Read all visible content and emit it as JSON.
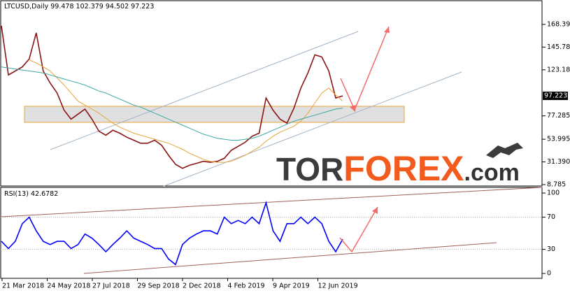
{
  "chart_data": [
    {
      "type": "line",
      "title": "LTCUSD,Daily",
      "ohlc": [
        99.478,
        102.379,
        94.502,
        97.223
      ],
      "ylim": [
        7.4,
        192.0
      ],
      "yticks": [
        {
          "value": 168.39,
          "label": "168.390"
        },
        145.785,
        {
          "value": 123.18,
          "label": "123.180"
        },
        77.285,
        53.995,
        {
          "value": 31.39,
          "label": "31.390"
        },
        8.785
      ],
      "series": [
        {
          "color": "#8a1414",
          "values": [
            167,
            118,
            122,
            126,
            134,
            160,
            122,
            110,
            100,
            83,
            74,
            79,
            84,
            74,
            62,
            58,
            63,
            60,
            56,
            53,
            50,
            50,
            53,
            48,
            38,
            29,
            25,
            28,
            30,
            32,
            31,
            32,
            35,
            43,
            47,
            51,
            57,
            60,
            95,
            83,
            74,
            70,
            85,
            105,
            120,
            138,
            136,
            122,
            95,
            97.223
          ]
        },
        {
          "color": "#e8a43a",
          "values": [
            null,
            null,
            null,
            null,
            133,
            130,
            126,
            122,
            115,
            108,
            100,
            92,
            88,
            84,
            80,
            75,
            70,
            66,
            63,
            60,
            58,
            56,
            54,
            52,
            50,
            47,
            44,
            40,
            37,
            34,
            32,
            31,
            31,
            32,
            35,
            38,
            42,
            46,
            52,
            57,
            61,
            64,
            67,
            72,
            80,
            90,
            100,
            105,
            98,
            92
          ]
        },
        {
          "color": "#3aa7a3",
          "values": [
            126,
            125,
            124,
            123,
            122,
            121,
            120,
            118,
            116,
            114,
            112,
            110,
            108,
            105,
            102,
            100,
            97,
            94,
            91,
            88,
            86,
            83,
            80,
            77,
            74,
            71,
            68,
            65,
            62,
            59,
            57,
            55,
            54,
            53,
            53,
            54,
            55,
            57,
            60,
            63,
            66,
            69,
            72,
            74,
            76,
            78,
            80,
            82,
            84,
            85
          ]
        }
      ],
      "watermark": [
        "TOR",
        "FOREX",
        ".com"
      ]
    },
    {
      "type": "line",
      "title": "RSI(13)",
      "ylim": [
        -6,
        107
      ],
      "yticks": [
        100,
        70,
        30,
        0
      ],
      "series": [
        {
          "color": "#0000ff",
          "values": [
            40,
            31,
            40,
            62,
            70,
            53,
            40,
            36,
            40,
            40,
            31,
            36,
            49,
            44,
            36,
            27,
            36,
            44,
            53,
            44,
            40,
            36,
            31,
            31,
            18,
            11,
            36,
            44,
            49,
            53,
            53,
            49,
            70,
            62,
            66,
            62,
            70,
            62,
            88,
            53,
            40,
            62,
            62,
            70,
            62,
            70,
            62,
            40,
            27,
            42.6782
          ]
        }
      ],
      "xtick_labels": [
        "21 Mar 2018",
        "24 May 2018",
        "27 Jul 2018",
        "29 Sep 2018",
        "2 Dec 2018",
        "4 Feb 2019",
        "9 Apr 2019",
        "12 Jun 2019"
      ]
    }
  ]
}
